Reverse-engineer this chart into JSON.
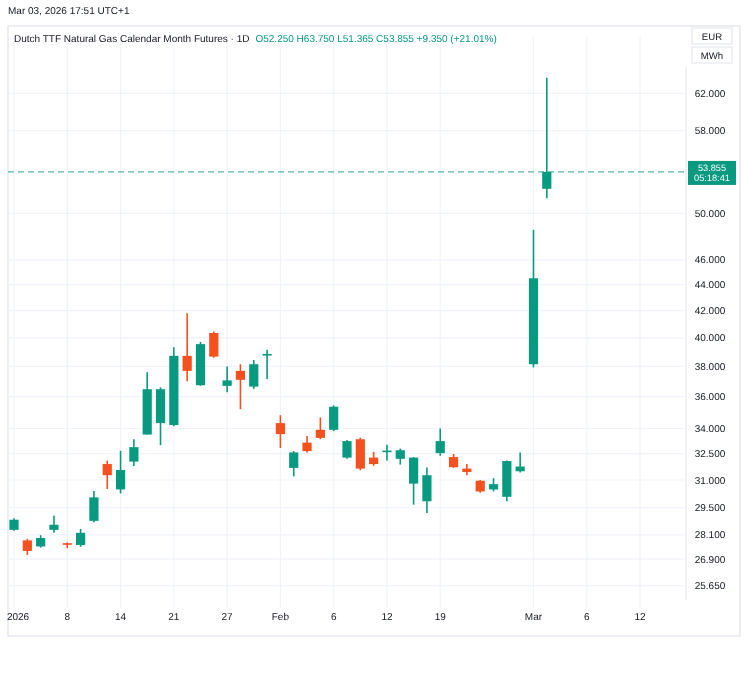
{
  "chart_data": {
    "type": "candlestick",
    "title": "Dutch TTF Natural Gas Calendar Month Futures · 1D",
    "subtitle": "O52.250 H63.750 L51.365 C53.855 +9.350 (+21.01%)",
    "annotations": [
      "Mar 03, 2026 17:51 UTC+1",
      "EUR",
      "MWh",
      "05:18:41"
    ],
    "categories": [
      "2026",
      null,
      null,
      null,
      "8",
      null,
      null,
      null,
      "14",
      null,
      null,
      null,
      "21",
      null,
      null,
      null,
      "27",
      null,
      null,
      null,
      "Feb",
      null,
      null,
      null,
      "6",
      null,
      null,
      null,
      "12",
      null,
      null,
      null,
      "19",
      null,
      null,
      null,
      null,
      null,
      null,
      "Mar",
      null,
      null,
      null,
      "6",
      null,
      null,
      null,
      "12",
      null,
      null,
      null
    ],
    "ohlc": [
      [
        28.35,
        28.95,
        28.3,
        28.87
      ],
      [
        27.82,
        27.9,
        27.1,
        27.3
      ],
      [
        27.52,
        28.08,
        27.46,
        27.94
      ],
      [
        28.35,
        29.08,
        28.2,
        28.61
      ],
      [
        27.68,
        27.72,
        27.43,
        27.62
      ],
      [
        27.59,
        28.4,
        27.5,
        28.2
      ],
      [
        28.81,
        30.4,
        28.74,
        30.05
      ],
      [
        31.9,
        32.1,
        30.5,
        31.27
      ],
      [
        30.48,
        32.67,
        30.26,
        31.56
      ],
      [
        32.04,
        33.35,
        31.79,
        32.88
      ],
      [
        33.63,
        37.6,
        33.63,
        36.48
      ],
      [
        34.33,
        36.6,
        33.0,
        36.48
      ],
      [
        34.21,
        39.33,
        34.13,
        38.73
      ],
      [
        38.73,
        41.8,
        37.0,
        37.7
      ],
      [
        36.74,
        39.7,
        36.7,
        39.55
      ],
      [
        40.35,
        40.45,
        38.6,
        38.68
      ],
      [
        36.7,
        38.0,
        36.28,
        37.06
      ],
      [
        37.7,
        38.15,
        35.2,
        37.1
      ],
      [
        36.65,
        38.44,
        36.5,
        38.15
      ],
      [
        38.8,
        39.15,
        37.15,
        38.86
      ],
      [
        34.33,
        34.82,
        32.83,
        33.66
      ],
      [
        31.68,
        32.65,
        31.2,
        32.57
      ],
      [
        33.15,
        33.54,
        32.57,
        32.65
      ],
      [
        33.92,
        34.68,
        33.35,
        33.43
      ],
      [
        33.92,
        35.44,
        33.84,
        35.35
      ],
      [
        32.27,
        33.3,
        32.2,
        33.24
      ],
      [
        33.35,
        33.45,
        31.55,
        31.64
      ],
      [
        32.27,
        32.6,
        31.8,
        31.9
      ],
      [
        32.6,
        33.03,
        32.1,
        32.68
      ],
      [
        32.2,
        32.8,
        31.87,
        32.7
      ],
      [
        30.8,
        32.3,
        29.66,
        32.27
      ],
      [
        29.84,
        31.7,
        29.22,
        31.27
      ],
      [
        32.53,
        34.0,
        32.38,
        33.24
      ],
      [
        32.3,
        32.48,
        31.68,
        31.72
      ],
      [
        31.64,
        31.9,
        31.27,
        31.45
      ],
      [
        30.96,
        31.0,
        30.3,
        30.37
      ],
      [
        30.48,
        31.1,
        30.37,
        30.77
      ],
      [
        30.08,
        32.1,
        29.84,
        32.07
      ],
      [
        31.49,
        32.57,
        31.42,
        31.76
      ],
      [
        38.15,
        48.55,
        37.93,
        44.505
      ],
      [
        52.25,
        63.75,
        51.365,
        53.855
      ],
      null,
      null,
      null,
      null,
      null,
      null,
      null,
      null,
      null,
      null
    ],
    "colors": [
      "#089981",
      "#f4511e",
      "#089981",
      "#089981",
      "#f4511e",
      "#089981",
      "#089981",
      "#f4511e",
      "#089981",
      "#089981",
      "#089981",
      "#089981",
      "#089981",
      "#f4511e",
      "#089981",
      "#f4511e",
      "#089981",
      "#f4511e",
      "#089981",
      "#089981",
      "#f4511e",
      "#089981",
      "#f4511e",
      "#f4511e",
      "#089981",
      "#089981",
      "#f4511e",
      "#f4511e",
      "#089981",
      "#089981",
      "#089981",
      "#089981",
      "#089981",
      "#f4511e",
      "#f4511e",
      "#f4511e",
      "#089981",
      "#089981",
      "#089981",
      "#089981",
      "#089981",
      null,
      null,
      null,
      null,
      null,
      null,
      null,
      null,
      null,
      null
    ],
    "log": true,
    "ylim": [
      25,
      65
    ],
    "yticks": [
      {
        "value": 25.65,
        "label": "25.650"
      },
      {
        "value": 26.9,
        "label": "26.900"
      },
      {
        "value": 28.1,
        "label": "28.100"
      },
      {
        "value": 29.5,
        "label": "29.500"
      },
      {
        "value": 31,
        "label": "31.000"
      },
      {
        "value": 32.5,
        "label": "32.500"
      },
      {
        "value": 34,
        "label": "34.000"
      },
      {
        "value": 36,
        "label": "36.000"
      },
      {
        "value": 38,
        "label": "38.000"
      },
      {
        "value": 40,
        "label": "40.000"
      },
      {
        "value": 42,
        "label": "42.000"
      },
      {
        "value": 44,
        "label": "44.000"
      },
      {
        "value": 46,
        "label": "46.000"
      },
      {
        "value": 50,
        "label": "50.000"
      },
      {
        "value": 58,
        "label": "58.000"
      },
      {
        "value": 62,
        "label": "62.000"
      }
    ],
    "ref_lines": [
      {
        "axis": "y",
        "value": 53.855,
        "label": "53.855",
        "color": "#089981",
        "line_style": "dashed"
      }
    ],
    "grid": true
  }
}
